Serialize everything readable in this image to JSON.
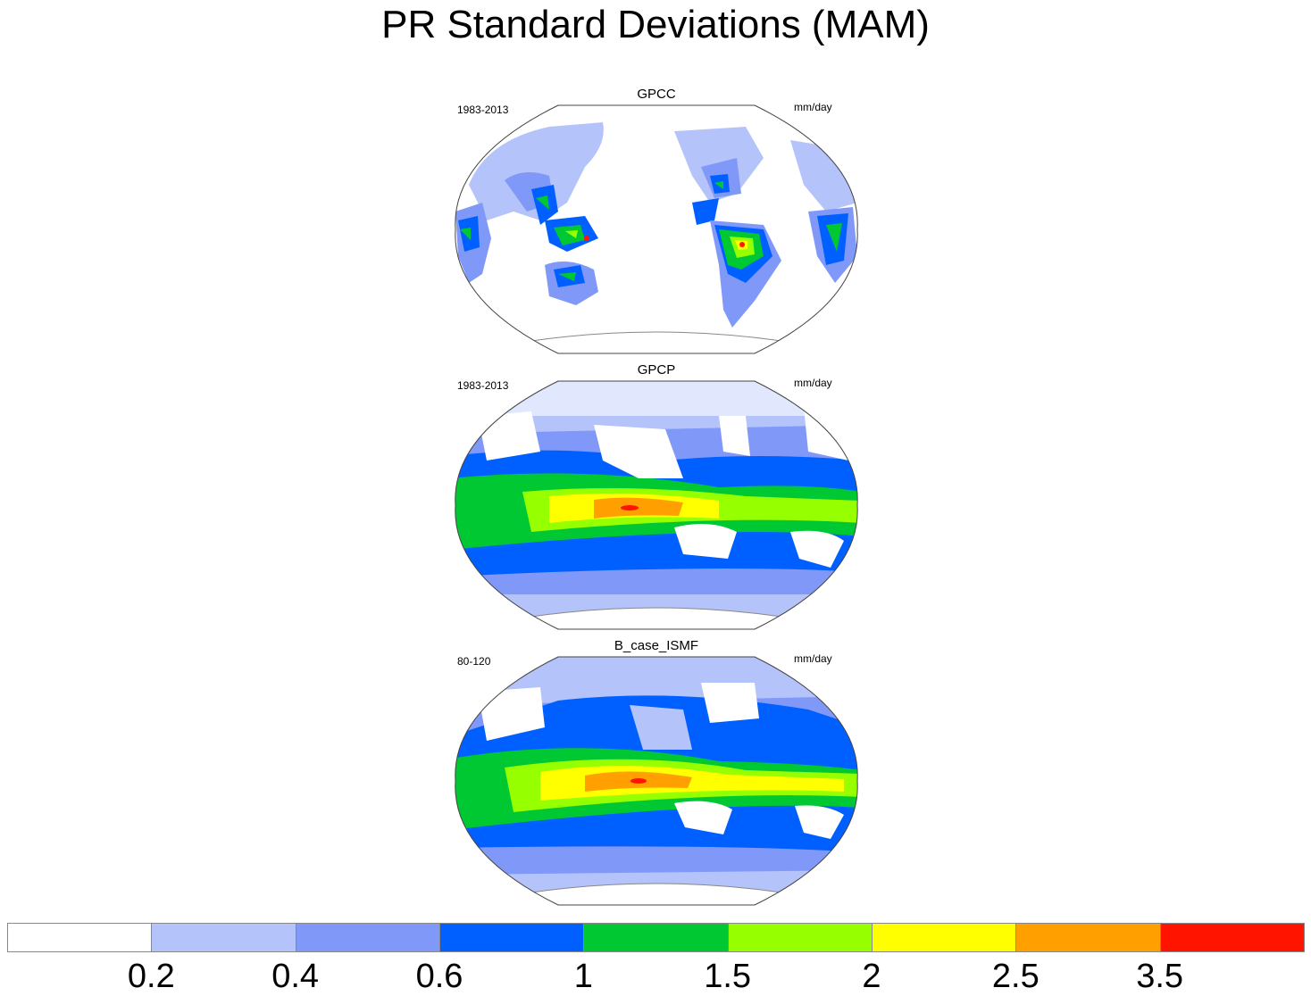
{
  "title": "PR Standard Deviations (MAM)",
  "panels": [
    {
      "name": "GPCC",
      "period": "1983-2013",
      "units": "mm/day"
    },
    {
      "name": "GPCP",
      "period": "1983-2013",
      "units": "mm/day"
    },
    {
      "name": "B_case_ISMF",
      "period": "80-120",
      "units": "mm/day"
    }
  ],
  "colorbar": {
    "colors": [
      "#ffffff",
      "#b4c3fa",
      "#8098f8",
      "#0060ff",
      "#00c832",
      "#96ff00",
      "#ffff00",
      "#ffa000",
      "#ff1400"
    ],
    "labels": [
      "0.2",
      "0.4",
      "0.6",
      "1",
      "1.5",
      "2",
      "2.5",
      "3.5"
    ]
  }
}
